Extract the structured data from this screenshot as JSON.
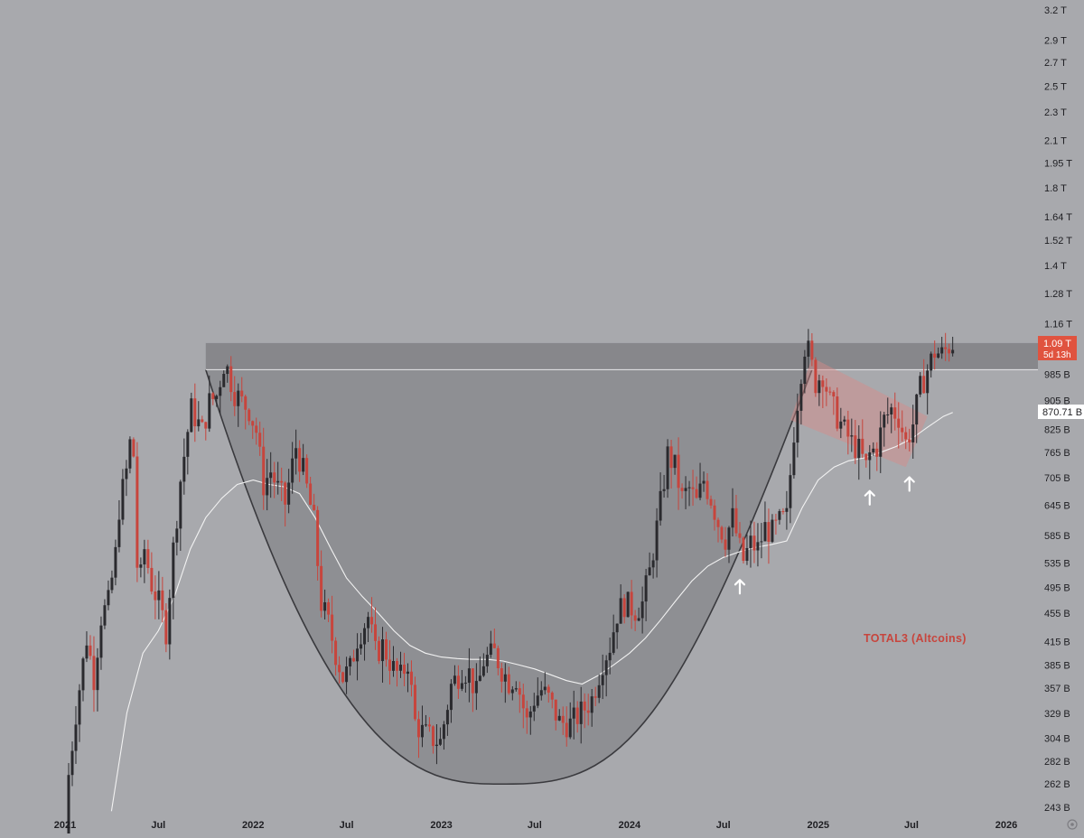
{
  "chart_data": {
    "type": "candlestick",
    "symbol_label": "TOTAL3 (Altcoins)",
    "y_scale": "log",
    "y_ticks": [
      "3.2 T",
      "2.9 T",
      "2.7 T",
      "2.5 T",
      "2.3 T",
      "2.1 T",
      "1.95 T",
      "1.8 T",
      "1.64 T",
      "1.52 T",
      "1.4 T",
      "1.28 T",
      "1.16 T",
      "985 B",
      "905 B",
      "825 B",
      "765 B",
      "705 B",
      "645 B",
      "585 B",
      "535 B",
      "495 B",
      "455 B",
      "415 B",
      "385 B",
      "357 B",
      "329 B",
      "304 B",
      "282 B",
      "262 B",
      "243 B"
    ],
    "y_tick_values": [
      3200,
      2900,
      2700,
      2500,
      2300,
      2100,
      1950,
      1800,
      1640,
      1520,
      1400,
      1280,
      1160,
      985,
      905,
      825,
      765,
      705,
      645,
      585,
      535,
      495,
      455,
      415,
      385,
      357,
      329,
      304,
      282,
      262,
      243
    ],
    "x_ticks": [
      {
        "label": "2021",
        "date": "2021-01-01"
      },
      {
        "label": "Jul",
        "date": "2021-07-01"
      },
      {
        "label": "2022",
        "date": "2022-01-01"
      },
      {
        "label": "Jul",
        "date": "2022-07-01"
      },
      {
        "label": "2023",
        "date": "2023-01-01"
      },
      {
        "label": "Jul",
        "date": "2023-07-01"
      },
      {
        "label": "2024",
        "date": "2024-01-01"
      },
      {
        "label": "Jul",
        "date": "2024-07-01"
      },
      {
        "label": "2025",
        "date": "2025-01-01"
      },
      {
        "label": "Jul",
        "date": "2025-07-01"
      },
      {
        "label": "2026",
        "date": "2026-01-01"
      }
    ],
    "price_label": {
      "value": "1.09 T",
      "countdown": "5d 13h"
    },
    "ma_label": "870.71 B",
    "price_path": [
      [
        "2021-01-01",
        215
      ],
      [
        "2021-01-08",
        270
      ],
      [
        "2021-01-22",
        330
      ],
      [
        "2021-02-12",
        420
      ],
      [
        "2021-02-26",
        370
      ],
      [
        "2021-03-12",
        450
      ],
      [
        "2021-03-26",
        470
      ],
      [
        "2021-04-09",
        550
      ],
      [
        "2021-04-16",
        640
      ],
      [
        "2021-04-30",
        720
      ],
      [
        "2021-05-12",
        840
      ],
      [
        "2021-05-23",
        480
      ],
      [
        "2021-06-04",
        560
      ],
      [
        "2021-06-18",
        500
      ],
      [
        "2021-07-02",
        470
      ],
      [
        "2021-07-16",
        430
      ],
      [
        "2021-07-30",
        560
      ],
      [
        "2021-08-13",
        700
      ],
      [
        "2021-08-27",
        820
      ],
      [
        "2021-09-03",
        880
      ],
      [
        "2021-09-24",
        820
      ],
      [
        "2021-10-08",
        900
      ],
      [
        "2021-10-22",
        920
      ],
      [
        "2021-11-05",
        1020
      ],
      [
        "2021-11-12",
        1000
      ],
      [
        "2021-11-26",
        930
      ],
      [
        "2021-12-10",
        900
      ],
      [
        "2021-12-24",
        880
      ],
      [
        "2022-01-07",
        820
      ],
      [
        "2022-01-21",
        690
      ],
      [
        "2022-02-04",
        720
      ],
      [
        "2022-02-18",
        680
      ],
      [
        "2022-03-04",
        650
      ],
      [
        "2022-03-25",
        780
      ],
      [
        "2022-04-08",
        720
      ],
      [
        "2022-04-29",
        610
      ],
      [
        "2022-05-13",
        470
      ],
      [
        "2022-05-27",
        440
      ],
      [
        "2022-06-10",
        400
      ],
      [
        "2022-06-24",
        370
      ],
      [
        "2022-07-08",
        380
      ],
      [
        "2022-07-22",
        420
      ],
      [
        "2022-08-12",
        450
      ],
      [
        "2022-08-26",
        400
      ],
      [
        "2022-09-09",
        410
      ],
      [
        "2022-09-30",
        380
      ],
      [
        "2022-10-14",
        370
      ],
      [
        "2022-10-28",
        390
      ],
      [
        "2022-11-11",
        320
      ],
      [
        "2022-11-25",
        310
      ],
      [
        "2022-12-09",
        305
      ],
      [
        "2022-12-30",
        300
      ],
      [
        "2023-01-20",
        360
      ],
      [
        "2023-02-10",
        380
      ],
      [
        "2023-02-24",
        375
      ],
      [
        "2023-03-10",
        350
      ],
      [
        "2023-03-24",
        390
      ],
      [
        "2023-04-14",
        400
      ],
      [
        "2023-04-28",
        380
      ],
      [
        "2023-05-12",
        365
      ],
      [
        "2023-05-26",
        370
      ],
      [
        "2023-06-16",
        320
      ],
      [
        "2023-06-30",
        345
      ],
      [
        "2023-07-14",
        355
      ],
      [
        "2023-07-28",
        345
      ],
      [
        "2023-08-18",
        320
      ],
      [
        "2023-09-08",
        318
      ],
      [
        "2023-09-29",
        330
      ],
      [
        "2023-10-20",
        345
      ],
      [
        "2023-11-10",
        390
      ],
      [
        "2023-11-24",
        410
      ],
      [
        "2023-12-08",
        455
      ],
      [
        "2023-12-22",
        470
      ],
      [
        "2024-01-12",
        460
      ],
      [
        "2024-01-26",
        470
      ],
      [
        "2024-02-09",
        520
      ],
      [
        "2024-02-23",
        600
      ],
      [
        "2024-03-08",
        700
      ],
      [
        "2024-03-15",
        760
      ],
      [
        "2024-03-29",
        730
      ],
      [
        "2024-04-12",
        660
      ],
      [
        "2024-04-26",
        680
      ],
      [
        "2024-05-10",
        650
      ],
      [
        "2024-05-24",
        700
      ],
      [
        "2024-06-07",
        660
      ],
      [
        "2024-06-21",
        610
      ],
      [
        "2024-07-05",
        580
      ],
      [
        "2024-07-19",
        620
      ],
      [
        "2024-08-02",
        560
      ],
      [
        "2024-08-09",
        540
      ],
      [
        "2024-08-23",
        570
      ],
      [
        "2024-09-06",
        560
      ],
      [
        "2024-09-20",
        600
      ],
      [
        "2024-10-04",
        590
      ],
      [
        "2024-10-18",
        610
      ],
      [
        "2024-11-01",
        620
      ],
      [
        "2024-11-15",
        820
      ],
      [
        "2024-11-29",
        1000
      ],
      [
        "2024-12-06",
        1080
      ],
      [
        "2024-12-13",
        1060
      ],
      [
        "2024-12-27",
        960
      ],
      [
        "2025-01-10",
        990
      ],
      [
        "2025-01-24",
        900
      ],
      [
        "2025-02-07",
        860
      ],
      [
        "2025-02-21",
        820
      ],
      [
        "2025-03-07",
        790
      ],
      [
        "2025-03-21",
        770
      ],
      [
        "2025-04-04",
        730
      ],
      [
        "2025-04-11",
        760
      ],
      [
        "2025-04-25",
        780
      ],
      [
        "2025-05-09",
        850
      ],
      [
        "2025-05-23",
        880
      ],
      [
        "2025-06-06",
        860
      ],
      [
        "2025-06-20",
        790
      ],
      [
        "2025-07-04",
        840
      ],
      [
        "2025-07-18",
        940
      ],
      [
        "2025-08-01",
        1000
      ],
      [
        "2025-08-15",
        1060
      ],
      [
        "2025-08-29",
        1050
      ],
      [
        "2025-09-12",
        1080
      ],
      [
        "2025-09-19",
        1090
      ]
    ],
    "ma_path": [
      [
        "2021-04-01",
        240
      ],
      [
        "2021-05-01",
        330
      ],
      [
        "2021-06-01",
        400
      ],
      [
        "2021-07-01",
        430
      ],
      [
        "2021-08-01",
        480
      ],
      [
        "2021-09-01",
        560
      ],
      [
        "2021-10-01",
        620
      ],
      [
        "2021-11-01",
        660
      ],
      [
        "2021-12-01",
        690
      ],
      [
        "2022-01-01",
        700
      ],
      [
        "2022-02-01",
        690
      ],
      [
        "2022-03-01",
        685
      ],
      [
        "2022-04-01",
        670
      ],
      [
        "2022-05-01",
        620
      ],
      [
        "2022-06-01",
        560
      ],
      [
        "2022-07-01",
        510
      ],
      [
        "2022-08-01",
        480
      ],
      [
        "2022-09-01",
        455
      ],
      [
        "2022-10-01",
        430
      ],
      [
        "2022-11-01",
        410
      ],
      [
        "2022-12-01",
        400
      ],
      [
        "2023-01-01",
        395
      ],
      [
        "2023-02-01",
        393
      ],
      [
        "2023-03-01",
        392
      ],
      [
        "2023-04-01",
        392
      ],
      [
        "2023-05-01",
        390
      ],
      [
        "2023-06-01",
        385
      ],
      [
        "2023-07-01",
        380
      ],
      [
        "2023-08-01",
        373
      ],
      [
        "2023-09-01",
        366
      ],
      [
        "2023-10-01",
        362
      ],
      [
        "2023-11-01",
        372
      ],
      [
        "2023-12-01",
        385
      ],
      [
        "2024-01-01",
        400
      ],
      [
        "2024-02-01",
        420
      ],
      [
        "2024-03-01",
        445
      ],
      [
        "2024-04-01",
        475
      ],
      [
        "2024-05-01",
        505
      ],
      [
        "2024-06-01",
        530
      ],
      [
        "2024-07-01",
        545
      ],
      [
        "2024-08-01",
        555
      ],
      [
        "2024-09-01",
        563
      ],
      [
        "2024-10-01",
        568
      ],
      [
        "2024-11-01",
        575
      ],
      [
        "2024-12-01",
        640
      ],
      [
        "2025-01-01",
        700
      ],
      [
        "2025-02-01",
        730
      ],
      [
        "2025-03-01",
        745
      ],
      [
        "2025-04-01",
        752
      ],
      [
        "2025-05-01",
        765
      ],
      [
        "2025-06-01",
        780
      ],
      [
        "2025-07-01",
        800
      ],
      [
        "2025-08-01",
        830
      ],
      [
        "2025-09-01",
        860
      ],
      [
        "2025-09-19",
        870.71
      ]
    ],
    "arrows": [
      {
        "date": "2024-08-02",
        "value": 495
      },
      {
        "date": "2025-04-11",
        "value": 660
      },
      {
        "date": "2025-06-27",
        "value": 690
      }
    ],
    "colors": {
      "background": "#a8a9ad",
      "up": "#2a2a2e",
      "down": "#c7453d",
      "ma": "#f2f2f2",
      "zone": "#6b6b70",
      "cup": "#6e6e73",
      "channel": "#d98a88",
      "price_badge": "#e0533f",
      "text": "#1e1e22"
    }
  }
}
